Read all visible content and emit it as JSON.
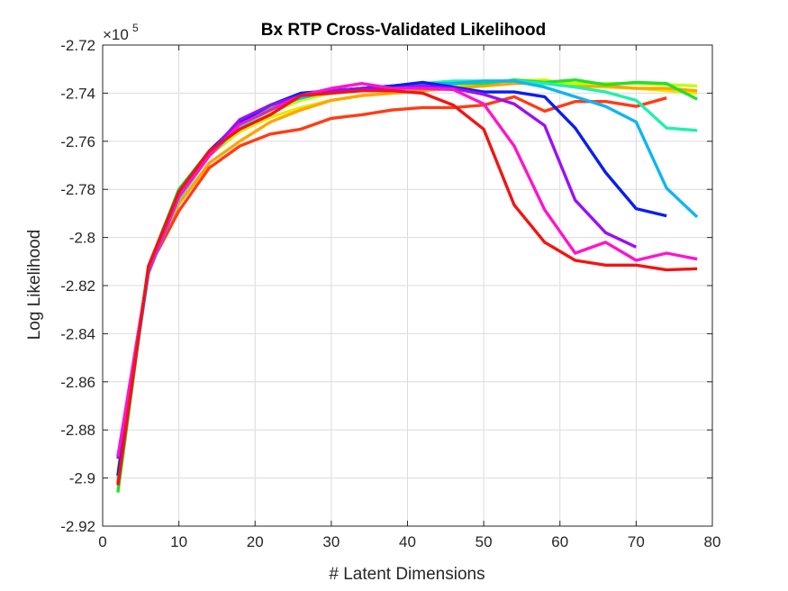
{
  "chart_data": {
    "type": "line",
    "title": "Bx RTP Cross-Validated Likelihood",
    "xlabel": "# Latent Dimensions",
    "ylabel": "Log Likelihood",
    "y_exponent_label": "×10",
    "y_exponent_power": "5",
    "xlim": [
      0,
      80
    ],
    "ylim": [
      -2.92,
      -2.72
    ],
    "xticks": [
      0,
      10,
      20,
      30,
      40,
      50,
      60,
      70,
      80
    ],
    "xtick_labels": [
      "0",
      "10",
      "20",
      "30",
      "40",
      "50",
      "60",
      "70",
      "80"
    ],
    "yticks": [
      -2.92,
      -2.9,
      -2.88,
      -2.86,
      -2.84,
      -2.82,
      -2.8,
      -2.78,
      -2.76,
      -2.74,
      -2.72
    ],
    "ytick_labels": [
      "-2.92",
      "-2.9",
      "-2.88",
      "-2.86",
      "-2.84",
      "-2.82",
      "-2.8",
      "-2.78",
      "-2.76",
      "-2.74",
      "-2.72"
    ],
    "grid": true,
    "series": [
      {
        "color": "#e8e800",
        "x": [
          2,
          6,
          10,
          14,
          18,
          22,
          26,
          30,
          34,
          38,
          42,
          46,
          50,
          54,
          58,
          62,
          66,
          70,
          74,
          78
        ],
        "y": [
          -2.897,
          -2.815,
          -2.782,
          -2.766,
          -2.756,
          -2.75,
          -2.746,
          -2.743,
          -2.741,
          -2.74,
          -2.739,
          -2.737,
          -2.7355,
          -2.735,
          -2.7345,
          -2.737,
          -2.7375,
          -2.738,
          -2.739,
          -2.74
        ]
      },
      {
        "color": "#ffa500",
        "x": [
          2,
          6,
          10,
          14,
          18,
          22,
          26,
          30,
          34,
          38,
          42,
          46,
          50,
          54,
          58,
          62,
          66,
          70,
          74,
          78
        ],
        "y": [
          -2.899,
          -2.813,
          -2.786,
          -2.769,
          -2.76,
          -2.752,
          -2.747,
          -2.743,
          -2.741,
          -2.74,
          -2.739,
          -2.738,
          -2.737,
          -2.736,
          -2.736,
          -2.737,
          -2.737,
          -2.738,
          -2.738,
          -2.739
        ]
      },
      {
        "color": "#bfff00",
        "x": [
          2,
          6,
          10,
          14,
          18,
          22,
          26,
          30,
          34,
          38,
          42,
          46,
          50,
          54,
          58,
          62,
          66,
          70,
          74,
          78
        ],
        "y": [
          -2.901,
          -2.813,
          -2.783,
          -2.766,
          -2.755,
          -2.748,
          -2.743,
          -2.74,
          -2.739,
          -2.738,
          -2.737,
          -2.736,
          -2.7355,
          -2.735,
          -2.735,
          -2.736,
          -2.736,
          -2.736,
          -2.7365,
          -2.737
        ]
      },
      {
        "color": "#22e02e",
        "x": [
          2,
          6,
          10,
          14,
          18,
          22,
          26,
          30,
          34,
          38,
          42,
          46,
          50,
          54,
          58,
          62,
          66,
          70,
          74,
          78
        ],
        "y": [
          -2.906,
          -2.812,
          -2.78,
          -2.764,
          -2.753,
          -2.746,
          -2.741,
          -2.739,
          -2.738,
          -2.737,
          -2.737,
          -2.736,
          -2.736,
          -2.7345,
          -2.7355,
          -2.7345,
          -2.7365,
          -2.7355,
          -2.736,
          -2.7425
        ]
      },
      {
        "color": "#ff3c14",
        "x": [
          2,
          6,
          10,
          14,
          18,
          22,
          26,
          30,
          34,
          38,
          42,
          46,
          50,
          54,
          58,
          62,
          66,
          70,
          74
        ],
        "y": [
          -2.902,
          -2.813,
          -2.789,
          -2.771,
          -2.762,
          -2.757,
          -2.755,
          -2.7505,
          -2.749,
          -2.747,
          -2.746,
          -2.746,
          -2.745,
          -2.7415,
          -2.7475,
          -2.7435,
          -2.7435,
          -2.7455,
          -2.742
        ]
      },
      {
        "color": "#20f0b0",
        "x": [
          2,
          6,
          10,
          14,
          18,
          22,
          26,
          30,
          34,
          38,
          42,
          46,
          50,
          54,
          58,
          62,
          66,
          70,
          74,
          78
        ],
        "y": [
          -2.9,
          -2.814,
          -2.784,
          -2.766,
          -2.754,
          -2.747,
          -2.742,
          -2.739,
          -2.738,
          -2.737,
          -2.736,
          -2.735,
          -2.735,
          -2.735,
          -2.736,
          -2.7375,
          -2.7395,
          -2.743,
          -2.7545,
          -2.7555
        ]
      },
      {
        "color": "#10b4f5",
        "x": [
          2,
          6,
          10,
          14,
          18,
          22,
          26,
          30,
          34,
          38,
          42,
          46,
          50,
          54,
          58,
          62,
          66,
          70,
          74,
          78
        ],
        "y": [
          -2.899,
          -2.815,
          -2.783,
          -2.765,
          -2.753,
          -2.745,
          -2.742,
          -2.739,
          -2.738,
          -2.737,
          -2.736,
          -2.736,
          -2.735,
          -2.735,
          -2.7375,
          -2.7415,
          -2.7455,
          -2.752,
          -2.7795,
          -2.7915
        ]
      },
      {
        "color": "#0a1ef0",
        "x": [
          2,
          6,
          10,
          14,
          18,
          22,
          26,
          30,
          34,
          38,
          42,
          46,
          50,
          54,
          58,
          62,
          66,
          70,
          74
        ],
        "y": [
          -2.899,
          -2.813,
          -2.781,
          -2.764,
          -2.752,
          -2.745,
          -2.74,
          -2.739,
          -2.738,
          -2.737,
          -2.7355,
          -2.7375,
          -2.7395,
          -2.7395,
          -2.7415,
          -2.7545,
          -2.773,
          -2.788,
          -2.791
        ]
      },
      {
        "color": "#9b10f5",
        "x": [
          2,
          6,
          10,
          14,
          18,
          22,
          26,
          30,
          34,
          38,
          42,
          46,
          50,
          54,
          58,
          62,
          66,
          70
        ],
        "y": [
          -2.892,
          -2.814,
          -2.783,
          -2.765,
          -2.751,
          -2.745,
          -2.741,
          -2.739,
          -2.738,
          -2.738,
          -2.737,
          -2.738,
          -2.7405,
          -2.7445,
          -2.7535,
          -2.7845,
          -2.798,
          -2.804
        ]
      },
      {
        "color": "#ff14cc",
        "x": [
          2,
          6,
          10,
          14,
          18,
          22,
          26,
          30,
          34,
          38,
          42,
          46,
          50,
          54,
          58,
          62,
          66,
          70,
          74,
          78
        ],
        "y": [
          -2.891,
          -2.814,
          -2.783,
          -2.766,
          -2.753,
          -2.747,
          -2.741,
          -2.738,
          -2.736,
          -2.738,
          -2.738,
          -2.7385,
          -2.7445,
          -2.762,
          -2.7885,
          -2.8065,
          -2.802,
          -2.8095,
          -2.8065,
          -2.809
        ]
      },
      {
        "color": "#f21414",
        "x": [
          2,
          6,
          10,
          14,
          18,
          22,
          26,
          30,
          34,
          38,
          42,
          46,
          50,
          54,
          58,
          62,
          66,
          70,
          74,
          78
        ],
        "y": [
          -2.903,
          -2.812,
          -2.781,
          -2.764,
          -2.755,
          -2.749,
          -2.741,
          -2.74,
          -2.739,
          -2.739,
          -2.74,
          -2.745,
          -2.755,
          -2.7865,
          -2.802,
          -2.8095,
          -2.8115,
          -2.8115,
          -2.8135,
          -2.813
        ]
      }
    ]
  }
}
